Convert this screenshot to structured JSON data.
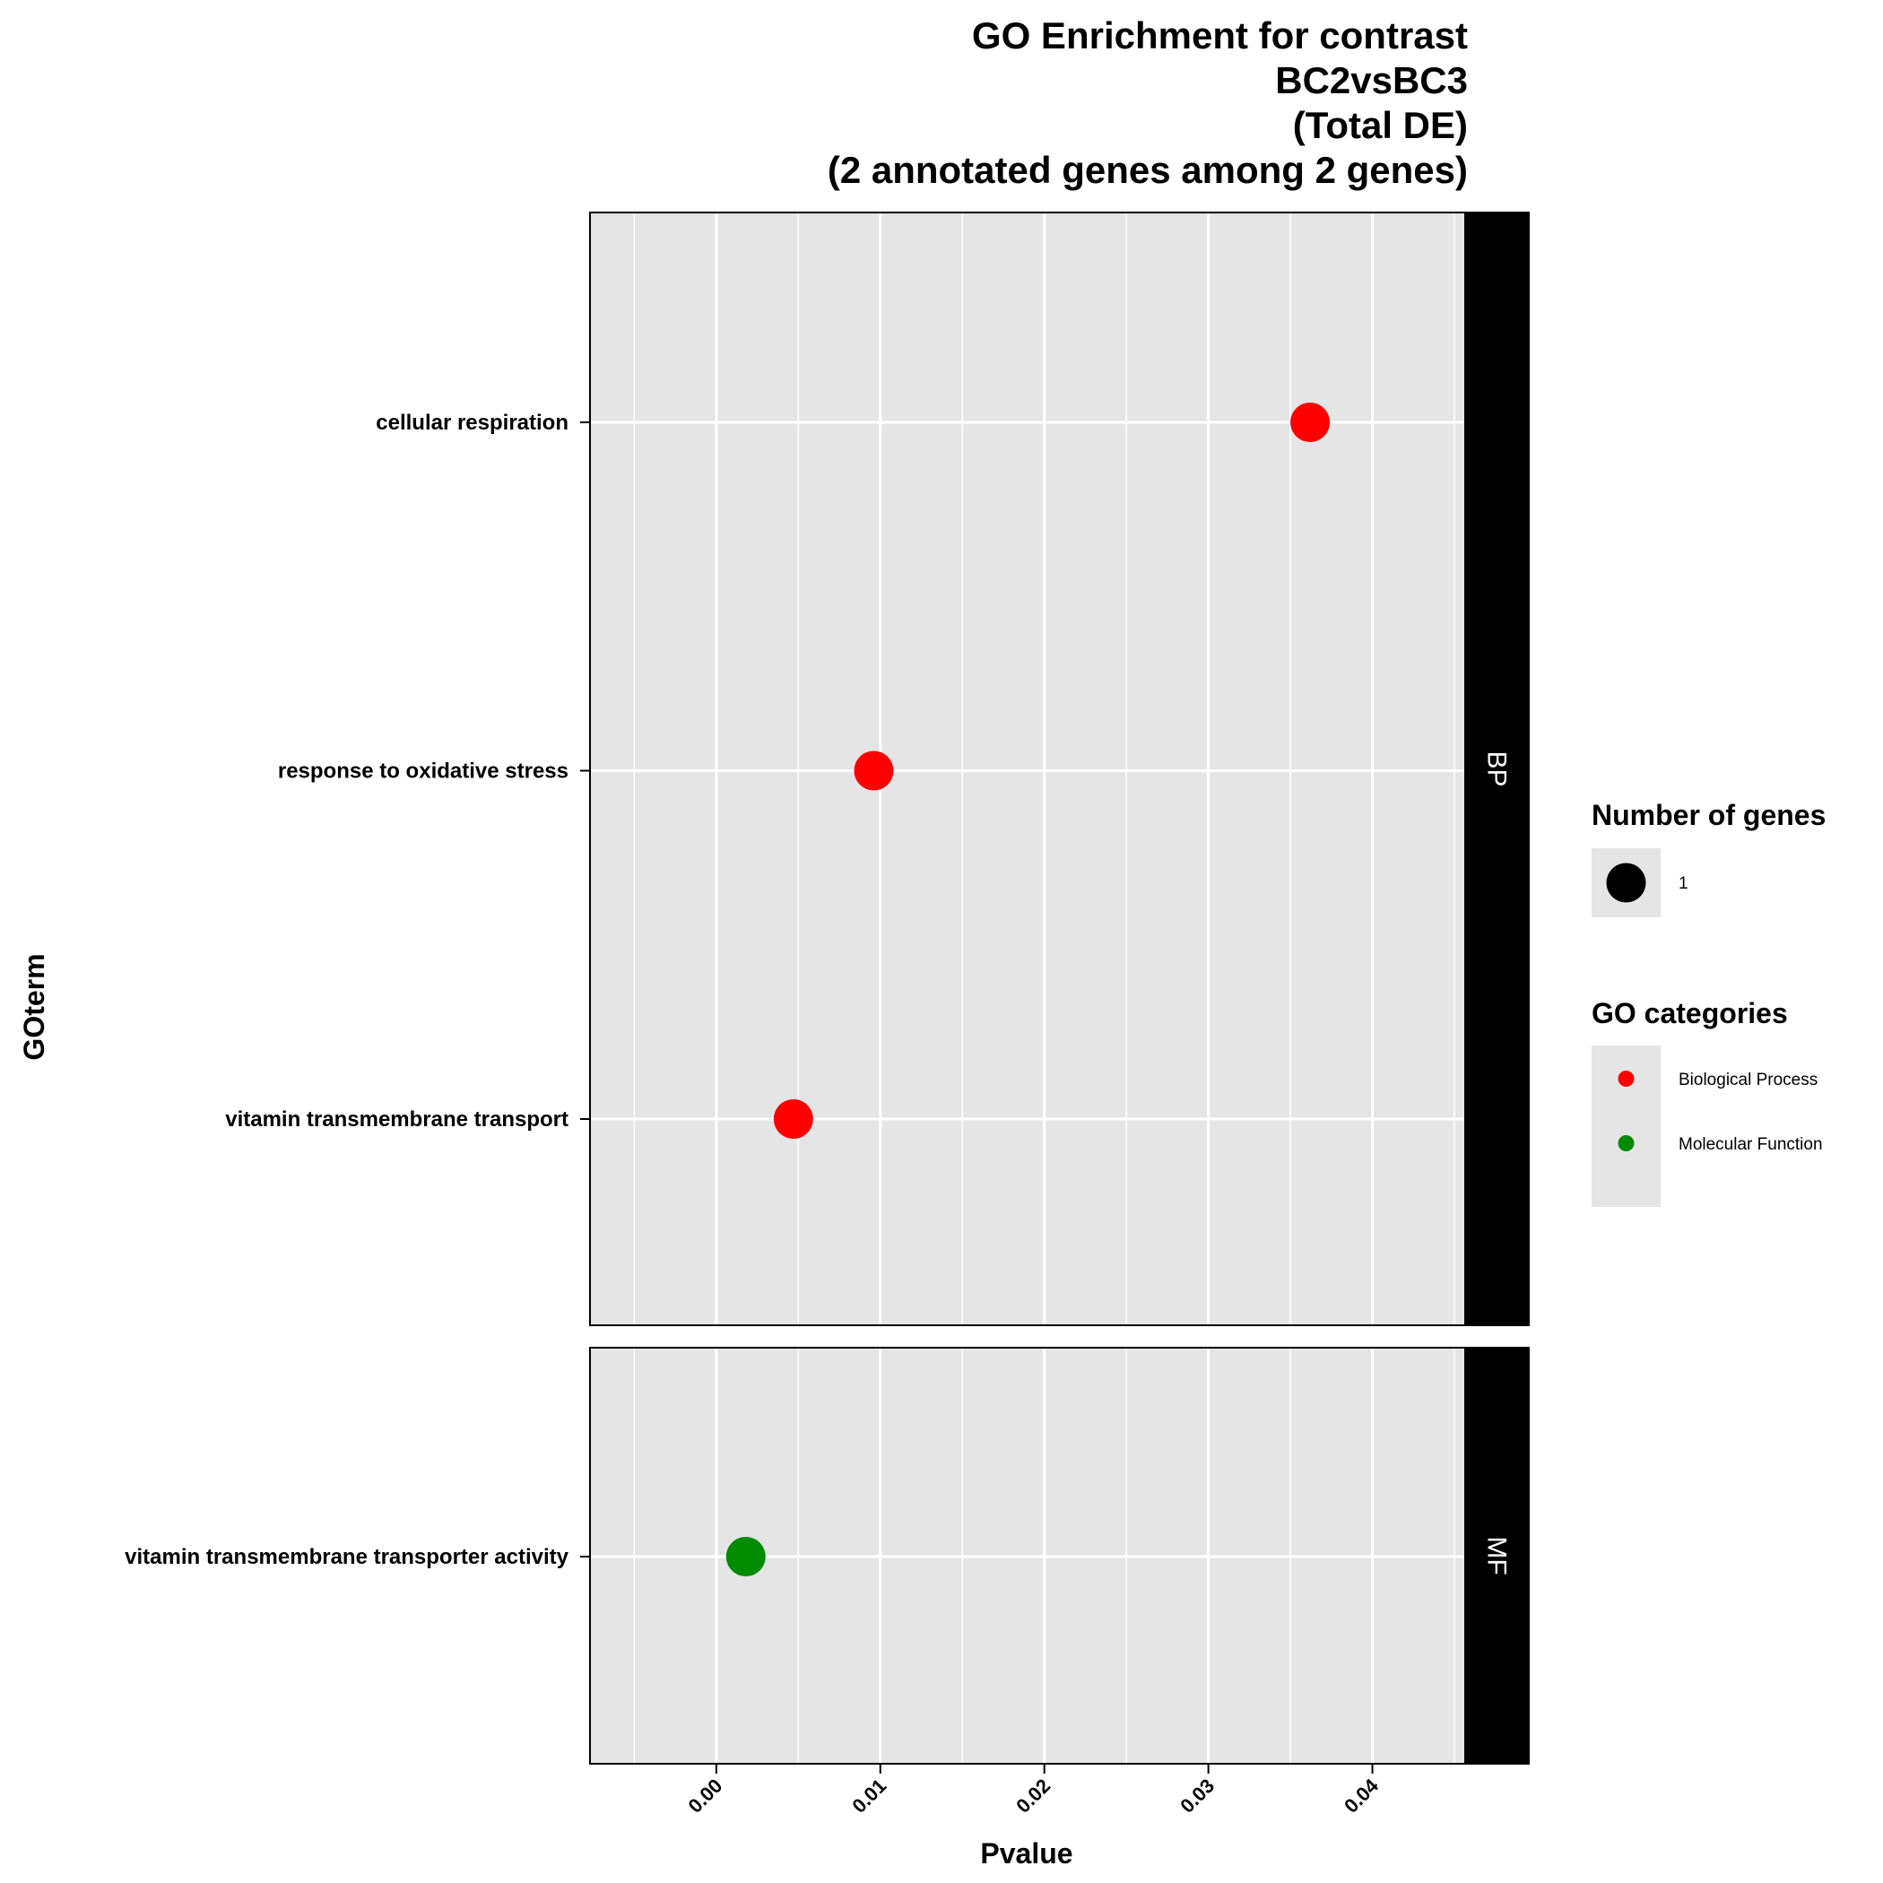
{
  "chart_data": {
    "type": "scatter",
    "title_lines": [
      "GO Enrichment for contrast",
      "BC2vsBC3",
      "(Total DE)",
      "(2 annotated genes among 2 genes)"
    ],
    "xlabel": "Pvalue",
    "ylabel": "GOterm",
    "xlim": [
      -0.0077,
      0.0456
    ],
    "x_ticks": [
      0.0,
      0.01,
      0.02,
      0.03,
      0.04
    ],
    "x_tick_labels": [
      "0.00",
      "0.01",
      "0.02",
      "0.03",
      "0.04"
    ],
    "grid": true,
    "panel_background": "#e5e5e5",
    "facets": [
      {
        "name": "BP",
        "terms": [
          "cellular respiration",
          "response to oxidative stress",
          "vitamin transmembrane transport"
        ],
        "points": [
          {
            "term": "cellular respiration",
            "pvalue": 0.0362,
            "genes": 1,
            "category": "Biological Process"
          },
          {
            "term": "response to oxidative stress",
            "pvalue": 0.0096,
            "genes": 1,
            "category": "Biological Process"
          },
          {
            "term": "vitamin transmembrane transport",
            "pvalue": 0.0047,
            "genes": 1,
            "category": "Biological Process"
          }
        ]
      },
      {
        "name": "MF",
        "terms": [
          "vitamin transmembrane transporter activity"
        ],
        "points": [
          {
            "term": "vitamin transmembrane transporter activity",
            "pvalue": 0.0018,
            "genes": 1,
            "category": "Molecular Function"
          }
        ]
      }
    ],
    "legends": {
      "size": {
        "title": "Number of genes",
        "items": [
          {
            "label": "1",
            "color": "#000000"
          }
        ]
      },
      "color": {
        "title": "GO categories",
        "items": [
          {
            "label": "Biological Process",
            "color": "#ff0000"
          },
          {
            "label": "Molecular Function",
            "color": "#008b00"
          }
        ]
      },
      "placement": "right"
    }
  }
}
